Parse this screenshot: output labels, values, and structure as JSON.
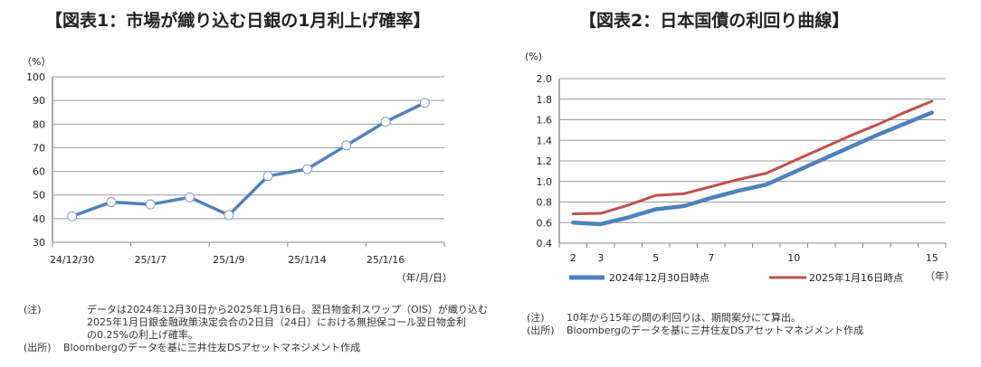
{
  "chart_data": [
    {
      "type": "line",
      "title": "【図表1：市場が織り込む日銀の1月利上げ確率】",
      "yunit": "（%）",
      "xunit": "（年/月/日）",
      "ylim": [
        30,
        100
      ],
      "yticks": [
        30,
        40,
        50,
        60,
        70,
        80,
        90,
        100
      ],
      "categories": [
        "24/12/30",
        "",
        "25/1/7",
        "",
        "25/1/9",
        "",
        "25/1/14",
        "",
        "25/1/16",
        ""
      ],
      "series": [
        {
          "values": [
            41,
            47,
            46,
            49,
            41.5,
            58,
            61,
            71,
            81,
            89
          ],
          "color": "#4f81bd"
        }
      ],
      "grid": true,
      "markers": "open-circle"
    },
    {
      "type": "line",
      "title": "【図表2：日本国債の利回り曲線】",
      "yunit": "(%)",
      "xunit": "（年）",
      "ylim": [
        0.4,
        2.0
      ],
      "yticks": [
        0.4,
        0.6,
        0.8,
        1.0,
        1.2,
        1.4,
        1.6,
        1.8,
        2.0
      ],
      "categories": [
        "2",
        "3",
        "",
        "5",
        "",
        "7",
        "",
        "",
        "10",
        "",
        "",
        "",
        "",
        "15"
      ],
      "series": [
        {
          "name": "2024年12月30日時点",
          "values": [
            0.6,
            0.585,
            0.65,
            0.73,
            0.76,
            0.84,
            0.91,
            0.97,
            1.09,
            1.21,
            1.33,
            1.45,
            1.56,
            1.67
          ],
          "color": "#4f81bd"
        },
        {
          "name": "2025年1月16日時点",
          "values": [
            0.685,
            0.69,
            0.77,
            0.865,
            0.88,
            0.95,
            1.02,
            1.08,
            1.2,
            1.32,
            1.44,
            1.55,
            1.67,
            1.78
          ],
          "color": "#c0504d"
        }
      ],
      "grid": true,
      "legend": "bottom"
    }
  ],
  "notes1": {
    "note_label": "(注)",
    "note_lines": [
      "データは2024年12月30日から2025年1月16日。翌日物金利スワップ（OIS）が織り込む",
      "2025年1月日銀金融政策決定会合の2日目（24日）における無担保コール翌日物金利",
      "の0.25%の利上げ確率。"
    ],
    "source_label": "(出所)",
    "source": "Bloombergのデータを基に三井住友DSアセットマネジメント作成"
  },
  "notes2": {
    "note_label": "(注)",
    "note": "10年から15年の間の利回りは、期間案分にて算出。",
    "source_label": "(出所)",
    "source": "Bloombergのデータを基に三井住友DSアセットマネジメント作成"
  }
}
